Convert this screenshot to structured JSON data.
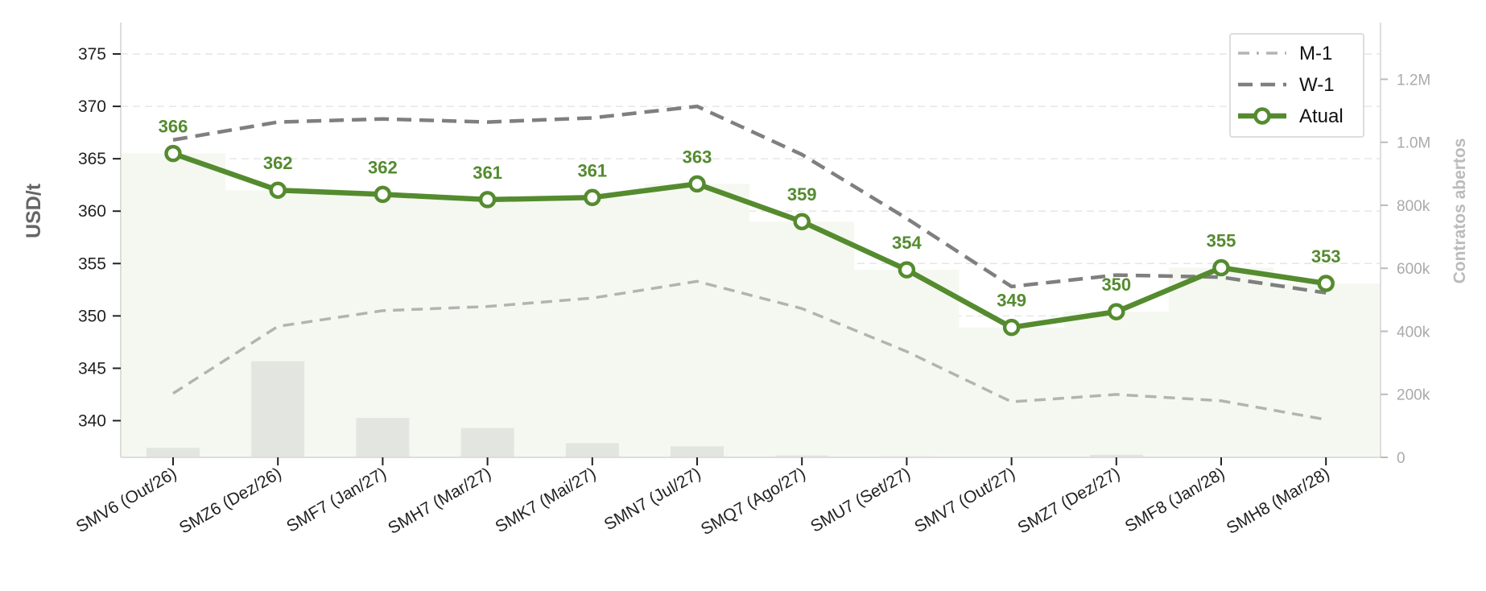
{
  "chart_data": {
    "type": "line",
    "categories": [
      "SMV6 (Out/26)",
      "SMZ6 (Dez/26)",
      "SMF7 (Jan/27)",
      "SMH7 (Mar/27)",
      "SMK7 (Mai/27)",
      "SMN7 (Jul/27)",
      "SMQ7 (Ago/27)",
      "SMU7 (Set/27)",
      "SMV7 (Out/27)",
      "SMZ7 (Dez/27)",
      "SMF8 (Jan/28)",
      "SMH8 (Mar/28)"
    ],
    "ylabel": "USD/t",
    "ylabel_right": "Contratos abertos",
    "ylim": [
      336.5,
      378
    ],
    "yticks": [
      340,
      345,
      350,
      355,
      360,
      365,
      370,
      375
    ],
    "y2lim": [
      0,
      1380000
    ],
    "y2ticks": [
      {
        "value": 0,
        "label": "0"
      },
      {
        "value": 200000,
        "label": "200k"
      },
      {
        "value": 400000,
        "label": "400k"
      },
      {
        "value": 600000,
        "label": "600k"
      },
      {
        "value": 800000,
        "label": "800k"
      },
      {
        "value": 1000000,
        "label": "1.0M"
      },
      {
        "value": 1200000,
        "label": "1.2M"
      }
    ],
    "grid": "horizontal dashed",
    "legend_position": "top-right",
    "series": [
      {
        "name": "M-1",
        "style": "dashdot",
        "color": "#b3b3b3",
        "values": [
          342.6,
          349.0,
          350.5,
          350.9,
          351.7,
          353.3,
          350.7,
          346.6,
          341.8,
          342.5,
          341.9,
          340.1
        ]
      },
      {
        "name": "W-1",
        "style": "dashed",
        "color": "#7f7f7f",
        "values": [
          366.8,
          368.5,
          368.8,
          368.5,
          368.9,
          370.0,
          365.4,
          359.3,
          352.8,
          353.9,
          353.7,
          352.2
        ]
      },
      {
        "name": "Atual",
        "style": "solid-markers",
        "color": "#548b2f",
        "values": [
          365.5,
          362.0,
          361.6,
          361.1,
          361.3,
          362.6,
          359.0,
          354.4,
          348.9,
          350.4,
          354.6,
          353.1
        ],
        "labels": [
          "366",
          "362",
          "362",
          "361",
          "361",
          "363",
          "359",
          "354",
          "349",
          "350",
          "355",
          "353"
        ]
      }
    ],
    "open_interest": [
      30000,
      305000,
      125000,
      93000,
      45000,
      35000,
      6000,
      3000,
      2000,
      8000,
      2000,
      1000
    ]
  }
}
